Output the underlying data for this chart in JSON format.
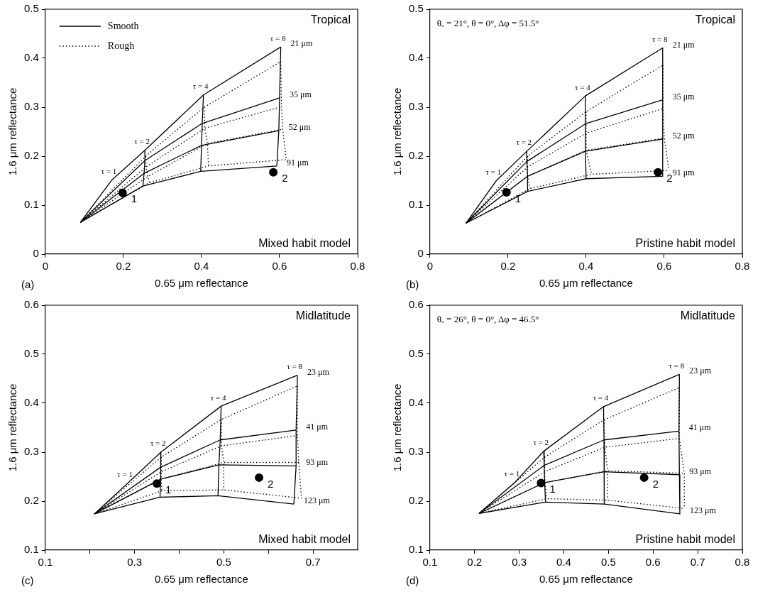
{
  "chart_data": [
    {
      "type": "line",
      "title": "Tropical",
      "subtitle": "Mixed habit model",
      "xlabel": "0.65 μm reflectance",
      "ylabel": "1.6 μm reflectance",
      "xlim": [
        0,
        0.8
      ],
      "ylim": [
        0,
        0.5
      ],
      "xticks": [
        0,
        0.2,
        0.4,
        0.6,
        0.8
      ],
      "yticks": [
        0,
        0.1,
        0.2,
        0.3,
        0.4,
        0.5
      ],
      "legend": "top left",
      "series": [
        {
          "name": "Smooth",
          "type": "line",
          "color": "#000000",
          "line_style": "solid",
          "x": [
            0.09,
            0.17,
            0.255,
            0.405,
            0.603
          ],
          "values": [
            0.065,
            0.151,
            0.212,
            0.325,
            0.423
          ]
        },
        {
          "type": "line",
          "color": "#000000",
          "line_style": "solid",
          "x": [
            0.09,
            0.255,
            0.402,
            0.6
          ],
          "values": [
            0.065,
            0.191,
            0.267,
            0.319
          ]
        },
        {
          "type": "line",
          "color": "#000000",
          "line_style": "solid",
          "x": [
            0.09,
            0.253,
            0.4,
            0.598
          ],
          "values": [
            0.065,
            0.165,
            0.222,
            0.252
          ]
        },
        {
          "type": "line",
          "color": "#000000",
          "line_style": "solid",
          "x": [
            0.09,
            0.25,
            0.398,
            0.593
          ],
          "values": [
            0.065,
            0.139,
            0.169,
            0.18
          ]
        },
        {
          "type": "line",
          "color": "#000000",
          "line_style": "solid",
          "x": [
            0.255,
            0.255,
            0.253,
            0.25
          ],
          "values": [
            0.212,
            0.191,
            0.165,
            0.139
          ]
        },
        {
          "type": "line",
          "color": "#000000",
          "line_style": "solid",
          "x": [
            0.405,
            0.402,
            0.4,
            0.398
          ],
          "values": [
            0.325,
            0.267,
            0.222,
            0.169
          ]
        },
        {
          "type": "line",
          "color": "#000000",
          "line_style": "solid",
          "x": [
            0.603,
            0.6,
            0.598,
            0.593
          ],
          "values": [
            0.423,
            0.319,
            0.252,
            0.18
          ]
        },
        {
          "name": "Rough",
          "type": "line",
          "color": "#000000",
          "line_style": "dotted",
          "x": [
            0.09,
            0.257,
            0.407,
            0.603
          ],
          "values": [
            0.065,
            0.2,
            0.3,
            0.393
          ]
        },
        {
          "type": "line",
          "color": "#000000",
          "line_style": "dotted",
          "x": [
            0.09,
            0.258,
            0.408,
            0.605
          ],
          "values": [
            0.065,
            0.178,
            0.257,
            0.301
          ]
        },
        {
          "type": "line",
          "color": "#000000",
          "line_style": "dotted",
          "x": [
            0.09,
            0.262,
            0.415,
            0.608
          ],
          "values": [
            0.065,
            0.158,
            0.226,
            0.255
          ]
        },
        {
          "type": "line",
          "color": "#000000",
          "line_style": "dotted",
          "x": [
            0.09,
            0.267,
            0.418,
            0.617
          ],
          "values": [
            0.065,
            0.146,
            0.18,
            0.193
          ]
        },
        {
          "type": "line",
          "color": "#000000",
          "line_style": "dotted",
          "x": [
            0.257,
            0.258,
            0.262,
            0.267
          ],
          "values": [
            0.2,
            0.178,
            0.158,
            0.146
          ]
        },
        {
          "type": "line",
          "color": "#000000",
          "line_style": "dotted",
          "x": [
            0.407,
            0.408,
            0.415,
            0.418
          ],
          "values": [
            0.3,
            0.257,
            0.226,
            0.18
          ]
        },
        {
          "type": "line",
          "color": "#000000",
          "line_style": "dotted",
          "x": [
            0.603,
            0.605,
            0.608,
            0.617
          ],
          "values": [
            0.393,
            0.301,
            0.255,
            0.193
          ]
        },
        {
          "type": "scatter",
          "color": "#000000",
          "marker": "circle",
          "x": [
            0.198,
            0.584
          ],
          "values": [
            0.125,
            0.167
          ]
        }
      ],
      "annotations": [
        "(a)",
        {
          "text": "21 μm",
          "x": 0.603,
          "y": 0.423
        },
        {
          "text": "35 μm",
          "x": 0.6,
          "y": 0.319
        },
        {
          "text": "52 μm",
          "x": 0.598,
          "y": 0.252
        },
        {
          "text": "91 μm",
          "x": 0.593,
          "y": 0.18
        },
        {
          "text": "τ = 1",
          "x": 0.17,
          "y": 0.151
        },
        {
          "text": "τ = 2",
          "x": 0.255,
          "y": 0.212
        },
        {
          "text": "τ = 4",
          "x": 0.405,
          "y": 0.325
        },
        {
          "text": "τ = 8",
          "x": 0.603,
          "y": 0.423
        },
        {
          "text": "1",
          "x": 0.198,
          "y": 0.125
        },
        {
          "text": "2",
          "x": 0.584,
          "y": 0.167
        }
      ]
    },
    {
      "type": "line",
      "title": "Tropical",
      "subtitle": "Pristine habit model",
      "xlabel": "0.65 μm reflectance",
      "ylabel": "1.6 μm reflectance",
      "xlim": [
        0,
        0.8
      ],
      "ylim": [
        0,
        0.5
      ],
      "xticks": [
        0,
        0.2,
        0.4,
        0.6,
        0.8
      ],
      "yticks": [
        0,
        0.1,
        0.2,
        0.3,
        0.4,
        0.5
      ],
      "series": [
        {
          "type": "line",
          "color": "#000000",
          "line_style": "solid",
          "x": [
            0.092,
            0.17,
            0.248,
            0.398,
            0.596
          ],
          "values": [
            0.063,
            0.15,
            0.21,
            0.323,
            0.421
          ]
        },
        {
          "type": "line",
          "color": "#000000",
          "line_style": "solid",
          "x": [
            0.092,
            0.248,
            0.398,
            0.596
          ],
          "values": [
            0.063,
            0.189,
            0.266,
            0.315
          ]
        },
        {
          "type": "line",
          "color": "#000000",
          "line_style": "solid",
          "x": [
            0.092,
            0.25,
            0.398,
            0.596
          ],
          "values": [
            0.063,
            0.159,
            0.21,
            0.235
          ]
        },
        {
          "type": "line",
          "color": "#000000",
          "line_style": "solid",
          "x": [
            0.092,
            0.25,
            0.4,
            0.596
          ],
          "values": [
            0.063,
            0.128,
            0.154,
            0.159
          ]
        },
        {
          "type": "line",
          "color": "#000000",
          "line_style": "solid",
          "x": [
            0.248,
            0.248,
            0.25,
            0.25
          ],
          "values": [
            0.21,
            0.189,
            0.159,
            0.128
          ]
        },
        {
          "type": "line",
          "color": "#000000",
          "line_style": "solid",
          "x": [
            0.398,
            0.398,
            0.398,
            0.4
          ],
          "values": [
            0.323,
            0.266,
            0.21,
            0.154
          ]
        },
        {
          "type": "line",
          "color": "#000000",
          "line_style": "solid",
          "x": [
            0.596,
            0.596,
            0.596,
            0.596
          ],
          "values": [
            0.421,
            0.315,
            0.235,
            0.159
          ]
        },
        {
          "type": "line",
          "color": "#000000",
          "line_style": "dotted",
          "x": [
            0.092,
            0.25,
            0.4,
            0.597
          ],
          "values": [
            0.063,
            0.2,
            0.291,
            0.386
          ]
        },
        {
          "type": "line",
          "color": "#000000",
          "line_style": "dotted",
          "x": [
            0.092,
            0.25,
            0.4,
            0.597
          ],
          "values": [
            0.063,
            0.178,
            0.247,
            0.297
          ]
        },
        {
          "type": "line",
          "color": "#000000",
          "line_style": "dotted",
          "x": [
            0.092,
            0.25,
            0.4,
            0.6
          ],
          "values": [
            0.063,
            0.159,
            0.212,
            0.237
          ]
        },
        {
          "type": "line",
          "color": "#000000",
          "line_style": "dotted",
          "x": [
            0.092,
            0.257,
            0.414,
            0.612
          ],
          "values": [
            0.063,
            0.134,
            0.163,
            0.171
          ]
        },
        {
          "type": "line",
          "color": "#000000",
          "line_style": "dotted",
          "x": [
            0.25,
            0.25,
            0.25,
            0.257
          ],
          "values": [
            0.2,
            0.178,
            0.159,
            0.134
          ]
        },
        {
          "type": "line",
          "color": "#000000",
          "line_style": "dotted",
          "x": [
            0.4,
            0.4,
            0.4,
            0.414
          ],
          "values": [
            0.291,
            0.247,
            0.212,
            0.163
          ]
        },
        {
          "type": "line",
          "color": "#000000",
          "line_style": "dotted",
          "x": [
            0.597,
            0.597,
            0.6,
            0.612
          ],
          "values": [
            0.386,
            0.297,
            0.237,
            0.171
          ]
        },
        {
          "type": "scatter",
          "color": "#000000",
          "marker": "circle",
          "x": [
            0.196,
            0.584
          ],
          "values": [
            0.126,
            0.167
          ]
        }
      ],
      "annotations": [
        "(b)",
        "θₒ = 21°, θ = 0°, Δφ = 51.5°",
        {
          "text": "21 μm",
          "x": 0.596,
          "y": 0.421
        },
        {
          "text": "35 μm",
          "x": 0.596,
          "y": 0.315
        },
        {
          "text": "52 μm",
          "x": 0.596,
          "y": 0.235
        },
        {
          "text": "91 μm",
          "x": 0.596,
          "y": 0.159
        },
        {
          "text": "τ = 1",
          "x": 0.17,
          "y": 0.15
        },
        {
          "text": "τ = 2",
          "x": 0.248,
          "y": 0.21
        },
        {
          "text": "τ = 4",
          "x": 0.398,
          "y": 0.323
        },
        {
          "text": "τ = 8",
          "x": 0.596,
          "y": 0.421
        },
        {
          "text": "1",
          "x": 0.196,
          "y": 0.126
        },
        {
          "text": "2",
          "x": 0.584,
          "y": 0.167
        }
      ]
    },
    {
      "type": "line",
      "title": "Midlatitude",
      "subtitle": "Mixed habit model",
      "xlabel": "0.65 μm reflectance",
      "ylabel": "1.6 μm reflectance",
      "xlim": [
        0.1,
        0.8
      ],
      "ylim": [
        0.1,
        0.6
      ],
      "xticks": [
        0.1,
        {
          "value": 0.2,
          "label": null
        },
        0.3,
        {
          "value": 0.4,
          "label": null
        },
        0.5,
        {
          "value": 0.6,
          "label": null
        },
        0.7
      ],
      "yticks": [
        0.1,
        0.2,
        0.3,
        0.4,
        0.5,
        0.6
      ],
      "series": [
        {
          "type": "line",
          "color": "#000000",
          "line_style": "solid",
          "x": [
            0.21,
            0.285,
            0.359,
            0.494,
            0.665
          ],
          "values": [
            0.174,
            0.237,
            0.3,
            0.394,
            0.457
          ]
        },
        {
          "type": "line",
          "color": "#000000",
          "line_style": "solid",
          "x": [
            0.21,
            0.358,
            0.492,
            0.662
          ],
          "values": [
            0.174,
            0.269,
            0.325,
            0.345
          ]
        },
        {
          "type": "line",
          "color": "#000000",
          "line_style": "solid",
          "x": [
            0.21,
            0.359,
            0.489,
            0.662
          ],
          "values": [
            0.174,
            0.245,
            0.274,
            0.272
          ]
        },
        {
          "type": "line",
          "color": "#000000",
          "line_style": "solid",
          "x": [
            0.21,
            0.357,
            0.487,
            0.657
          ],
          "values": [
            0.174,
            0.208,
            0.211,
            0.194
          ]
        },
        {
          "type": "line",
          "color": "#000000",
          "line_style": "solid",
          "x": [
            0.359,
            0.358,
            0.359,
            0.357
          ],
          "values": [
            0.3,
            0.269,
            0.245,
            0.208
          ]
        },
        {
          "type": "line",
          "color": "#000000",
          "line_style": "solid",
          "x": [
            0.494,
            0.492,
            0.489,
            0.487
          ],
          "values": [
            0.394,
            0.325,
            0.274,
            0.211
          ]
        },
        {
          "type": "line",
          "color": "#000000",
          "line_style": "solid",
          "x": [
            0.665,
            0.662,
            0.662,
            0.657
          ],
          "values": [
            0.457,
            0.345,
            0.272,
            0.194
          ]
        },
        {
          "type": "line",
          "color": "#000000",
          "line_style": "dotted",
          "x": [
            0.21,
            0.36,
            0.495,
            0.665
          ],
          "values": [
            0.174,
            0.29,
            0.367,
            0.435
          ]
        },
        {
          "type": "line",
          "color": "#000000",
          "line_style": "dotted",
          "x": [
            0.21,
            0.36,
            0.495,
            0.665
          ],
          "values": [
            0.174,
            0.26,
            0.313,
            0.334
          ]
        },
        {
          "type": "line",
          "color": "#000000",
          "line_style": "dotted",
          "x": [
            0.21,
            0.36,
            0.5,
            0.668
          ],
          "values": [
            0.174,
            0.245,
            0.279,
            0.279
          ]
        },
        {
          "type": "line",
          "color": "#000000",
          "line_style": "dotted",
          "x": [
            0.21,
            0.361,
            0.5,
            0.674
          ],
          "values": [
            0.174,
            0.221,
            0.223,
            0.206
          ]
        },
        {
          "type": "line",
          "color": "#000000",
          "line_style": "dotted",
          "x": [
            0.36,
            0.36,
            0.36,
            0.361
          ],
          "values": [
            0.29,
            0.26,
            0.245,
            0.221
          ]
        },
        {
          "type": "line",
          "color": "#000000",
          "line_style": "dotted",
          "x": [
            0.495,
            0.495,
            0.5,
            0.5
          ],
          "values": [
            0.367,
            0.313,
            0.279,
            0.223
          ]
        },
        {
          "type": "line",
          "color": "#000000",
          "line_style": "dotted",
          "x": [
            0.665,
            0.665,
            0.668,
            0.674
          ],
          "values": [
            0.435,
            0.334,
            0.279,
            0.206
          ]
        },
        {
          "type": "scatter",
          "color": "#000000",
          "marker": "circle",
          "x": [
            0.35,
            0.579
          ],
          "values": [
            0.236,
            0.248
          ]
        }
      ],
      "annotations": [
        "(c)",
        {
          "text": "23 μm",
          "x": 0.665,
          "y": 0.457
        },
        {
          "text": "41 μm",
          "x": 0.662,
          "y": 0.345
        },
        {
          "text": "93 μm",
          "x": 0.662,
          "y": 0.272
        },
        {
          "text": "123 μm",
          "x": 0.657,
          "y": 0.194
        },
        {
          "text": "τ = 1",
          "x": 0.285,
          "y": 0.237
        },
        {
          "text": "τ = 2",
          "x": 0.359,
          "y": 0.3
        },
        {
          "text": "τ = 4",
          "x": 0.494,
          "y": 0.394
        },
        {
          "text": "τ = 8",
          "x": 0.665,
          "y": 0.457
        },
        {
          "text": "1",
          "x": 0.35,
          "y": 0.236
        },
        {
          "text": "2",
          "x": 0.579,
          "y": 0.248
        }
      ]
    },
    {
      "type": "line",
      "title": "Midlatitude",
      "subtitle": "Pristine habit model",
      "xlabel": "0.65 μm reflectance",
      "ylabel": "1.6 μm reflectance",
      "xlim": [
        0.1,
        0.8
      ],
      "ylim": [
        0.1,
        0.6
      ],
      "xticks": [
        0.1,
        0.2,
        0.3,
        0.4,
        0.5,
        0.6,
        0.7,
        0.8
      ],
      "yticks": [
        0.1,
        0.2,
        0.3,
        0.4,
        0.5,
        0.6
      ],
      "series": [
        {
          "type": "line",
          "color": "#000000",
          "line_style": "solid",
          "x": [
            0.21,
            0.29,
            0.355,
            0.489,
            0.659
          ],
          "values": [
            0.175,
            0.238,
            0.302,
            0.393,
            0.459
          ]
        },
        {
          "type": "line",
          "color": "#000000",
          "line_style": "solid",
          "x": [
            0.21,
            0.356,
            0.49,
            0.658
          ],
          "values": [
            0.175,
            0.273,
            0.325,
            0.343
          ]
        },
        {
          "type": "line",
          "color": "#000000",
          "line_style": "solid",
          "x": [
            0.21,
            0.357,
            0.49,
            0.659
          ],
          "values": [
            0.175,
            0.238,
            0.26,
            0.254
          ]
        },
        {
          "type": "line",
          "color": "#000000",
          "line_style": "solid",
          "x": [
            0.21,
            0.359,
            0.491,
            0.66
          ],
          "values": [
            0.175,
            0.198,
            0.194,
            0.174
          ]
        },
        {
          "type": "line",
          "color": "#000000",
          "line_style": "solid",
          "x": [
            0.355,
            0.356,
            0.357,
            0.359
          ],
          "values": [
            0.302,
            0.273,
            0.238,
            0.198
          ]
        },
        {
          "type": "line",
          "color": "#000000",
          "line_style": "solid",
          "x": [
            0.489,
            0.49,
            0.49,
            0.491
          ],
          "values": [
            0.393,
            0.325,
            0.26,
            0.194
          ]
        },
        {
          "type": "line",
          "color": "#000000",
          "line_style": "solid",
          "x": [
            0.659,
            0.658,
            0.659,
            0.66
          ],
          "values": [
            0.459,
            0.343,
            0.254,
            0.174
          ]
        },
        {
          "type": "line",
          "color": "#000000",
          "line_style": "dotted",
          "x": [
            0.21,
            0.357,
            0.49,
            0.659
          ],
          "values": [
            0.175,
            0.29,
            0.366,
            0.432
          ]
        },
        {
          "type": "line",
          "color": "#000000",
          "line_style": "dotted",
          "x": [
            0.21,
            0.357,
            0.492,
            0.659
          ],
          "values": [
            0.175,
            0.26,
            0.31,
            0.328
          ]
        },
        {
          "type": "line",
          "color": "#000000",
          "line_style": "dotted",
          "x": [
            0.21,
            0.358,
            0.498,
            0.67
          ],
          "values": [
            0.175,
            0.238,
            0.262,
            0.257
          ]
        },
        {
          "type": "line",
          "color": "#000000",
          "line_style": "dotted",
          "x": [
            0.21,
            0.362,
            0.498,
            0.67
          ],
          "values": [
            0.175,
            0.205,
            0.202,
            0.185
          ]
        },
        {
          "type": "line",
          "color": "#000000",
          "line_style": "dotted",
          "x": [
            0.357,
            0.357,
            0.358,
            0.362
          ],
          "values": [
            0.29,
            0.26,
            0.238,
            0.205
          ]
        },
        {
          "type": "line",
          "color": "#000000",
          "line_style": "dotted",
          "x": [
            0.49,
            0.492,
            0.498,
            0.498
          ],
          "values": [
            0.366,
            0.31,
            0.262,
            0.202
          ]
        },
        {
          "type": "line",
          "color": "#000000",
          "line_style": "dotted",
          "x": [
            0.659,
            0.659,
            0.67,
            0.67
          ],
          "values": [
            0.432,
            0.328,
            0.257,
            0.185
          ]
        },
        {
          "type": "scatter",
          "color": "#000000",
          "marker": "circle",
          "x": [
            0.349,
            0.58
          ],
          "values": [
            0.237,
            0.248
          ]
        }
      ],
      "annotations": [
        "(d)",
        "θₒ = 26°, θ = 0°, Δφ = 46.5°",
        {
          "text": "23 μm",
          "x": 0.659,
          "y": 0.459
        },
        {
          "text": "41 μm",
          "x": 0.658,
          "y": 0.343
        },
        {
          "text": "93 μm",
          "x": 0.659,
          "y": 0.254
        },
        {
          "text": "123 μm",
          "x": 0.66,
          "y": 0.174
        },
        {
          "text": "τ = 1",
          "x": 0.29,
          "y": 0.238
        },
        {
          "text": "τ = 2",
          "x": 0.355,
          "y": 0.302
        },
        {
          "text": "τ = 4",
          "x": 0.489,
          "y": 0.393
        },
        {
          "text": "τ = 8",
          "x": 0.659,
          "y": 0.459
        },
        {
          "text": "1",
          "x": 0.349,
          "y": 0.237
        },
        {
          "text": "2",
          "x": 0.58,
          "y": 0.248
        }
      ]
    }
  ]
}
